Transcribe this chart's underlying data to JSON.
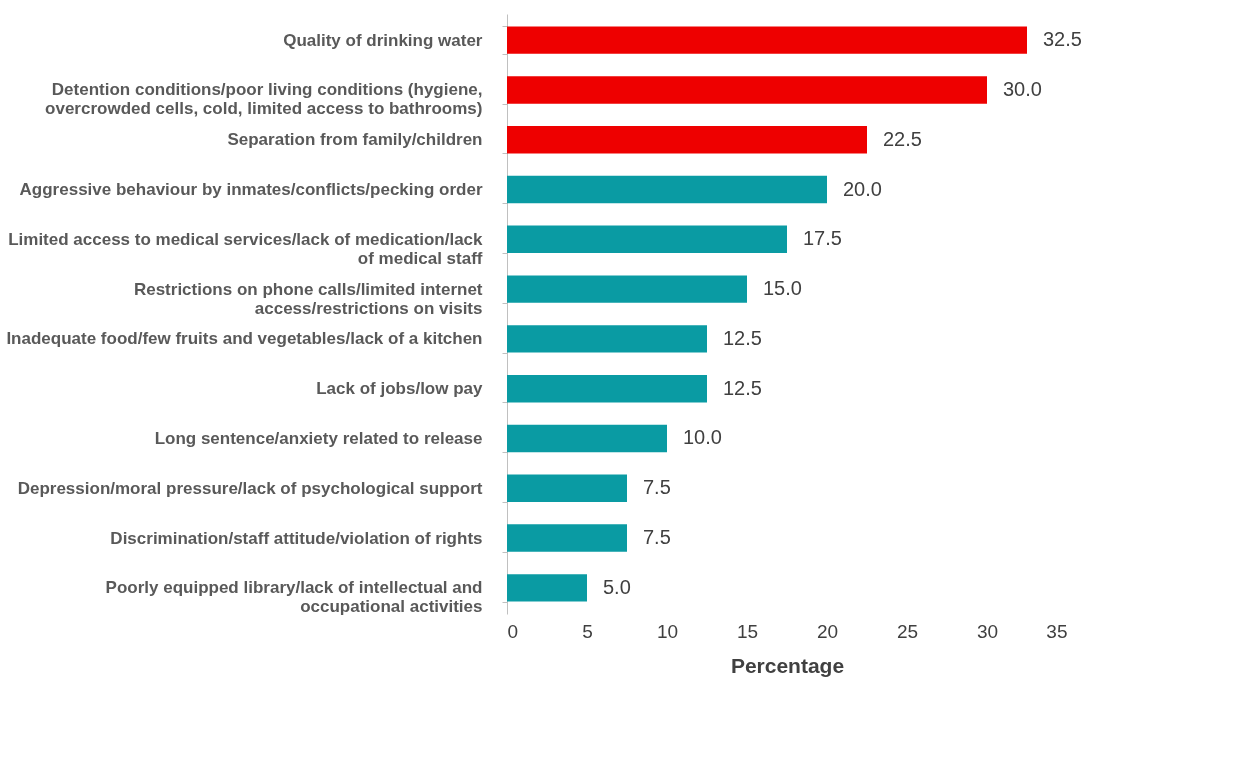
{
  "chart_data": {
    "type": "bar",
    "orientation": "horizontal",
    "xlabel": "Percentage",
    "categories": [
      "Quality of drinking water",
      "Detention conditions/poor living conditions (hygiene, overcrowded cells, cold, limited access to bathrooms)",
      "Separation from family/children",
      "Aggressive behaviour by inmates/conflicts/pecking order",
      "Limited access to medical services/lack of medication/lack of medical staff",
      "Restrictions on phone calls/limited internet access/restrictions on visits",
      "Inadequate food/few fruits and vegetables/lack of a kitchen",
      "Lack of jobs/low pay",
      "Long sentence/anxiety related to release",
      "Depression/moral pressure/lack of psychological support",
      "Discrimination/staff attitude/violation of rights",
      "Poorly equipped library/lack of intellectual and occupational activities"
    ],
    "values": [
      32.5,
      30.0,
      22.5,
      20.0,
      17.5,
      15.0,
      12.5,
      12.5,
      10.0,
      7.5,
      7.5,
      5.0
    ],
    "colors": [
      "#ee0000",
      "#ee0000",
      "#ee0000",
      "#0a9ba3",
      "#0a9ba3",
      "#0a9ba3",
      "#0a9ba3",
      "#0a9ba3",
      "#0a9ba3",
      "#0a9ba3",
      "#0a9ba3",
      "#0a9ba3"
    ],
    "xlim": [
      0,
      35
    ],
    "xticks": [
      0,
      5,
      10,
      15,
      20,
      25,
      30,
      35
    ],
    "grid": false,
    "value_labels": [
      "32.5",
      "30.0",
      "22.5",
      "20.0",
      "17.5",
      "15.0",
      "12.5",
      "12.5",
      "10.0",
      "7.5",
      "7.5",
      "5.0"
    ]
  }
}
